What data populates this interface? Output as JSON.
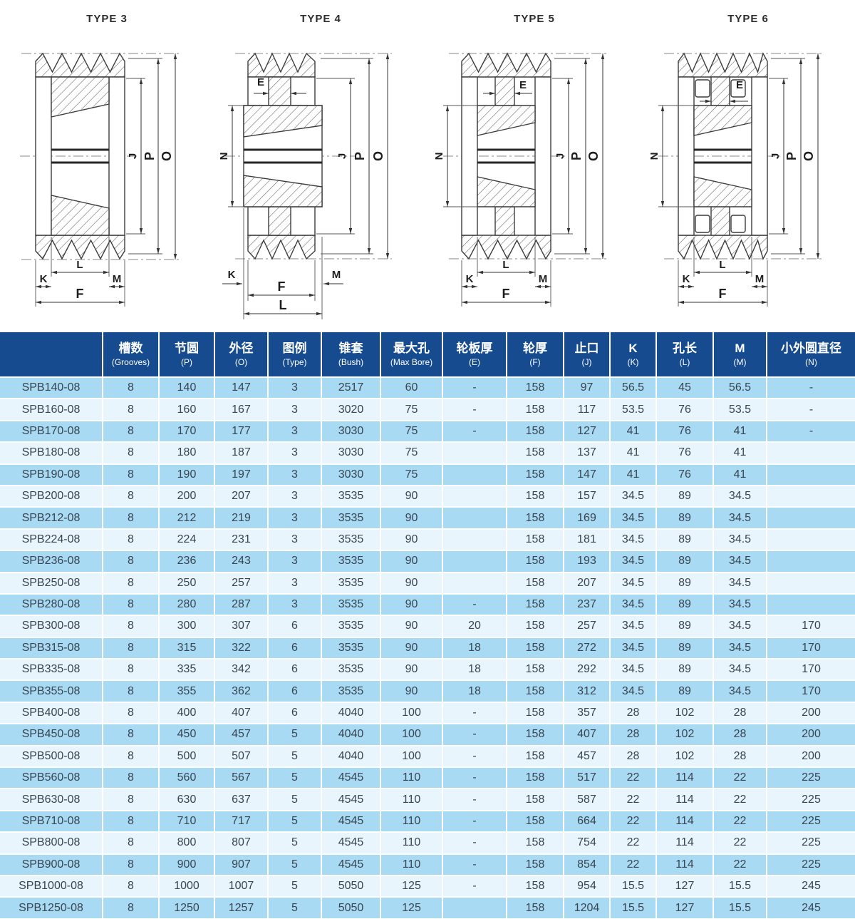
{
  "colors": {
    "header_bg": "#164B8F",
    "header_text": "#FFFFFF",
    "row_alt": "#A8DAF4",
    "row_base": "#E9F5FC",
    "cell_text": "#394450"
  },
  "diagrams": [
    {
      "title": "TYPE 3",
      "dims": {
        "j": "J",
        "p": "P",
        "o": "O",
        "k": "K",
        "l": "L",
        "m": "M",
        "f": "F"
      }
    },
    {
      "title": "TYPE 4",
      "dims": {
        "e": "E",
        "n": "N",
        "j": "J",
        "p": "P",
        "o": "O",
        "k": "K",
        "l": "L",
        "m": "M",
        "f": "F"
      }
    },
    {
      "title": "TYPE 5",
      "dims": {
        "e": "E",
        "n": "N",
        "j": "J",
        "p": "P",
        "o": "O",
        "k": "K",
        "l": "L",
        "m": "M",
        "f": "F"
      }
    },
    {
      "title": "TYPE 6",
      "dims": {
        "e": "E",
        "n": "N",
        "j": "J",
        "p": "P",
        "o": "O",
        "k": "K",
        "l": "L",
        "m": "M",
        "f": "F"
      }
    }
  ],
  "table": {
    "headers": [
      {
        "cn": "",
        "en": ""
      },
      {
        "cn": "槽数",
        "en": "(Grooves)"
      },
      {
        "cn": "节圆",
        "en": "(P)"
      },
      {
        "cn": "外径",
        "en": "(O)"
      },
      {
        "cn": "图例",
        "en": "(Type)"
      },
      {
        "cn": "锥套",
        "en": "(Bush)"
      },
      {
        "cn": "最大孔",
        "en": "(Max Bore)"
      },
      {
        "cn": "轮板厚",
        "en": "(E)"
      },
      {
        "cn": "轮厚",
        "en": "(F)"
      },
      {
        "cn": "止口",
        "en": "(J)"
      },
      {
        "cn": "K",
        "en": "(K)"
      },
      {
        "cn": "孔长",
        "en": "(L)"
      },
      {
        "cn": "M",
        "en": "(M)"
      },
      {
        "cn": "小外圆直径",
        "en": "(N)"
      }
    ],
    "rows": [
      [
        "SPB140-08",
        "8",
        "140",
        "147",
        "3",
        "2517",
        "60",
        "-",
        "158",
        "97",
        "56.5",
        "45",
        "56.5",
        "-"
      ],
      [
        "SPB160-08",
        "8",
        "160",
        "167",
        "3",
        "3020",
        "75",
        "-",
        "158",
        "117",
        "53.5",
        "76",
        "53.5",
        "-"
      ],
      [
        "SPB170-08",
        "8",
        "170",
        "177",
        "3",
        "3030",
        "75",
        "-",
        "158",
        "127",
        "41",
        "76",
        "41",
        "-"
      ],
      [
        "SPB180-08",
        "8",
        "180",
        "187",
        "3",
        "3030",
        "75",
        "",
        "158",
        "137",
        "41",
        "76",
        "41",
        ""
      ],
      [
        "SPB190-08",
        "8",
        "190",
        "197",
        "3",
        "3030",
        "75",
        "",
        "158",
        "147",
        "41",
        "76",
        "41",
        ""
      ],
      [
        "SPB200-08",
        "8",
        "200",
        "207",
        "3",
        "3535",
        "90",
        "",
        "158",
        "157",
        "34.5",
        "89",
        "34.5",
        ""
      ],
      [
        "SPB212-08",
        "8",
        "212",
        "219",
        "3",
        "3535",
        "90",
        "",
        "158",
        "169",
        "34.5",
        "89",
        "34.5",
        ""
      ],
      [
        "SPB224-08",
        "8",
        "224",
        "231",
        "3",
        "3535",
        "90",
        "",
        "158",
        "181",
        "34.5",
        "89",
        "34.5",
        ""
      ],
      [
        "SPB236-08",
        "8",
        "236",
        "243",
        "3",
        "3535",
        "90",
        "",
        "158",
        "193",
        "34.5",
        "89",
        "34.5",
        ""
      ],
      [
        "SPB250-08",
        "8",
        "250",
        "257",
        "3",
        "3535",
        "90",
        "",
        "158",
        "207",
        "34.5",
        "89",
        "34.5",
        ""
      ],
      [
        "SPB280-08",
        "8",
        "280",
        "287",
        "3",
        "3535",
        "90",
        "-",
        "158",
        "237",
        "34.5",
        "89",
        "34.5",
        ""
      ],
      [
        "SPB300-08",
        "8",
        "300",
        "307",
        "6",
        "3535",
        "90",
        "20",
        "158",
        "257",
        "34.5",
        "89",
        "34.5",
        "170"
      ],
      [
        "SPB315-08",
        "8",
        "315",
        "322",
        "6",
        "3535",
        "90",
        "18",
        "158",
        "272",
        "34.5",
        "89",
        "34.5",
        "170"
      ],
      [
        "SPB335-08",
        "8",
        "335",
        "342",
        "6",
        "3535",
        "90",
        "18",
        "158",
        "292",
        "34.5",
        "89",
        "34.5",
        "170"
      ],
      [
        "SPB355-08",
        "8",
        "355",
        "362",
        "6",
        "3535",
        "90",
        "18",
        "158",
        "312",
        "34.5",
        "89",
        "34.5",
        "170"
      ],
      [
        "SPB400-08",
        "8",
        "400",
        "407",
        "6",
        "4040",
        "100",
        "-",
        "158",
        "357",
        "28",
        "102",
        "28",
        "200"
      ],
      [
        "SPB450-08",
        "8",
        "450",
        "457",
        "5",
        "4040",
        "100",
        "-",
        "158",
        "407",
        "28",
        "102",
        "28",
        "200"
      ],
      [
        "SPB500-08",
        "8",
        "500",
        "507",
        "5",
        "4040",
        "100",
        "-",
        "158",
        "457",
        "28",
        "102",
        "28",
        "200"
      ],
      [
        "SPB560-08",
        "8",
        "560",
        "567",
        "5",
        "4545",
        "110",
        "-",
        "158",
        "517",
        "22",
        "114",
        "22",
        "225"
      ],
      [
        "SPB630-08",
        "8",
        "630",
        "637",
        "5",
        "4545",
        "110",
        "-",
        "158",
        "587",
        "22",
        "114",
        "22",
        "225"
      ],
      [
        "SPB710-08",
        "8",
        "710",
        "717",
        "5",
        "4545",
        "110",
        "-",
        "158",
        "664",
        "22",
        "114",
        "22",
        "225"
      ],
      [
        "SPB800-08",
        "8",
        "800",
        "807",
        "5",
        "4545",
        "110",
        "-",
        "158",
        "754",
        "22",
        "114",
        "22",
        "225"
      ],
      [
        "SPB900-08",
        "8",
        "900",
        "907",
        "5",
        "4545",
        "110",
        "-",
        "158",
        "854",
        "22",
        "114",
        "22",
        "225"
      ],
      [
        "SPB1000-08",
        "8",
        "1000",
        "1007",
        "5",
        "5050",
        "125",
        "-",
        "158",
        "954",
        "15.5",
        "127",
        "15.5",
        "245"
      ],
      [
        "SPB1250-08",
        "8",
        "1250",
        "1257",
        "5",
        "5050",
        "125",
        "",
        "158",
        "1204",
        "15.5",
        "127",
        "15.5",
        "245"
      ]
    ]
  }
}
